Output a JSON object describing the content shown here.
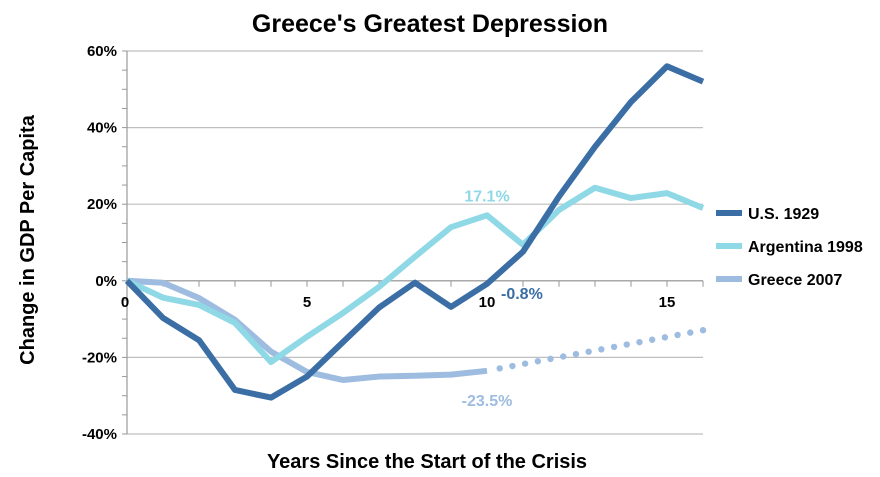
{
  "chart_data": {
    "type": "line",
    "title": "Greece's Greatest Depression",
    "xlabel": "Years Since the Start of the Crisis",
    "ylabel": "Change in GDP Per Capita",
    "xlim": [
      0,
      16
    ],
    "ylim": [
      -40,
      60
    ],
    "x_ticks": [
      "0",
      "5",
      "10",
      "15"
    ],
    "x_tick_values": [
      0,
      5,
      10,
      15
    ],
    "y_ticks": [
      "-40%",
      "-20%",
      "0%",
      "20%",
      "40%",
      "60%"
    ],
    "y_tick_values": [
      -40,
      -20,
      0,
      20,
      40,
      60
    ],
    "grid": "horizontal",
    "legend_position": "right",
    "series": [
      {
        "name": "U.S. 1929",
        "color": "#3A6EA5",
        "x": [
          0,
          1,
          2,
          3,
          4,
          5,
          6,
          7,
          8,
          9,
          10,
          11,
          12,
          13,
          14,
          15,
          16
        ],
        "values": [
          0,
          -9.7,
          -15.5,
          -28.5,
          -30.5,
          -25,
          -16,
          -7,
          -0.5,
          -6.8,
          -0.8,
          7.6,
          22,
          35,
          46.7,
          56,
          52
        ]
      },
      {
        "name": "Argentina 1998",
        "color": "#8FD8E6",
        "x": [
          0,
          1,
          2,
          3,
          4,
          5,
          6,
          7,
          8,
          9,
          10,
          11,
          12,
          13,
          14,
          15,
          16
        ],
        "values": [
          0,
          -4.4,
          -6.3,
          -11,
          -21.2,
          -14.6,
          -8.4,
          -1.6,
          6.3,
          14,
          17.1,
          9.4,
          18.5,
          24.3,
          21.6,
          22.9,
          19
        ]
      },
      {
        "name": "Greece 2007",
        "color": "#9DBCE0",
        "x": [
          0,
          1,
          2,
          3,
          4,
          5,
          6,
          7,
          8,
          9,
          10
        ],
        "values": [
          0,
          -0.5,
          -4.5,
          -10.2,
          -18.5,
          -23.8,
          -25.9,
          -25,
          -24.8,
          -24.5,
          -23.5
        ],
        "projection": {
          "x": [
            10,
            16
          ],
          "values": [
            -23.5,
            -12.9
          ],
          "style": "dotted"
        }
      }
    ],
    "annotations": [
      {
        "text": "17.1%",
        "series": "Argentina 1998",
        "x": 10,
        "y": 17.1
      },
      {
        "text": "-0.8%",
        "series": "U.S. 1929",
        "x": 10,
        "y": -0.8
      },
      {
        "text": "-23.5%",
        "series": "Greece 2007",
        "x": 10,
        "y": -23.5
      }
    ]
  }
}
